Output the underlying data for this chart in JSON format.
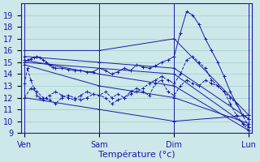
{
  "background_color": "#cce8e8",
  "grid_color": "#a0cccc",
  "line_color": "#1a1aaa",
  "x_tick_positions": [
    0,
    24,
    48,
    72
  ],
  "x_tick_labels": [
    "Ven",
    "Sam",
    "Dim",
    "Lun"
  ],
  "xlabel": "Température (°c)",
  "ylim": [
    9,
    20
  ],
  "yticks": [
    9,
    10,
    11,
    12,
    13,
    14,
    15,
    16,
    17,
    18,
    19
  ],
  "series": [
    {
      "comment": "straight line: 16->16->17->10.5 Ven to Lun",
      "x": [
        0,
        24,
        48,
        72
      ],
      "y": [
        16.0,
        16.0,
        17.0,
        10.5
      ],
      "style": "-",
      "marker": "+"
    },
    {
      "x": [
        0,
        24,
        48,
        72
      ],
      "y": [
        15.5,
        15.0,
        14.5,
        10.2
      ],
      "style": "-",
      "marker": "+"
    },
    {
      "x": [
        0,
        24,
        48,
        72
      ],
      "y": [
        15.0,
        14.5,
        14.0,
        9.5
      ],
      "style": "-",
      "marker": "+"
    },
    {
      "x": [
        0,
        24,
        48,
        72
      ],
      "y": [
        15.2,
        14.0,
        13.0,
        9.2
      ],
      "style": "-",
      "marker": "+"
    },
    {
      "x": [
        0,
        24,
        48,
        72
      ],
      "y": [
        14.8,
        13.0,
        12.0,
        9.8
      ],
      "style": "-",
      "marker": "+"
    },
    {
      "x": [
        0,
        24,
        48,
        72
      ],
      "y": [
        12.0,
        11.0,
        10.0,
        10.5
      ],
      "style": "-",
      "marker": "+"
    },
    {
      "x": [
        0,
        1,
        2,
        3,
        4,
        5,
        6,
        7,
        8,
        9,
        10,
        12,
        14,
        16,
        18,
        20,
        22,
        24,
        26,
        28,
        30,
        32,
        34,
        36,
        38,
        40,
        42,
        44,
        46,
        48,
        50,
        52,
        54,
        56,
        58,
        60,
        62,
        64,
        66,
        68,
        70,
        72
      ],
      "y": [
        15.0,
        15.2,
        15.3,
        15.4,
        15.5,
        15.4,
        15.2,
        15.0,
        14.8,
        14.6,
        14.5,
        14.5,
        14.4,
        14.3,
        14.3,
        14.2,
        14.2,
        14.5,
        14.3,
        14.0,
        14.2,
        14.5,
        14.3,
        14.8,
        14.6,
        14.5,
        14.7,
        15.0,
        15.2,
        15.5,
        17.5,
        19.3,
        19.0,
        18.2,
        17.0,
        16.0,
        15.0,
        13.8,
        12.5,
        11.5,
        10.5,
        10.2
      ],
      "style": "-",
      "marker": "+"
    },
    {
      "x": [
        0,
        1,
        2,
        3,
        4,
        5,
        6,
        7,
        8,
        10,
        12,
        14,
        16,
        18,
        20,
        22,
        24,
        26,
        28,
        30,
        32,
        34,
        36,
        38,
        40,
        42,
        44,
        46,
        48,
        50,
        52,
        54,
        56,
        58,
        60,
        62,
        64,
        66,
        68,
        70,
        72
      ],
      "y": [
        13.2,
        14.5,
        13.5,
        12.8,
        12.2,
        12.0,
        11.8,
        12.0,
        12.2,
        12.5,
        12.2,
        12.0,
        11.8,
        12.2,
        12.5,
        12.3,
        12.2,
        12.5,
        12.0,
        12.3,
        12.0,
        12.5,
        12.8,
        12.5,
        12.2,
        13.2,
        13.5,
        12.5,
        12.2,
        13.0,
        13.5,
        13.2,
        13.0,
        13.5,
        13.2,
        13.0,
        12.5,
        12.0,
        11.5,
        10.5,
        9.5
      ],
      "style": "--",
      "marker": "+"
    },
    {
      "x": [
        0,
        2,
        4,
        6,
        8,
        10,
        12,
        14,
        16,
        18,
        20,
        22,
        24,
        26,
        28,
        30,
        32,
        34,
        36,
        38,
        40,
        42,
        44,
        46,
        48,
        50,
        52,
        54,
        56,
        58,
        60,
        62,
        64,
        66,
        68,
        70,
        72
      ],
      "y": [
        12.0,
        12.8,
        12.5,
        12.0,
        11.8,
        11.5,
        12.0,
        12.2,
        12.0,
        11.8,
        12.0,
        12.3,
        12.2,
        12.0,
        11.5,
        11.8,
        12.0,
        12.3,
        12.5,
        12.8,
        13.2,
        13.5,
        13.8,
        13.5,
        13.2,
        14.0,
        15.2,
        15.5,
        15.0,
        14.5,
        13.5,
        13.0,
        12.5,
        11.5,
        10.5,
        9.8,
        9.2
      ],
      "style": "--",
      "marker": "+"
    }
  ]
}
